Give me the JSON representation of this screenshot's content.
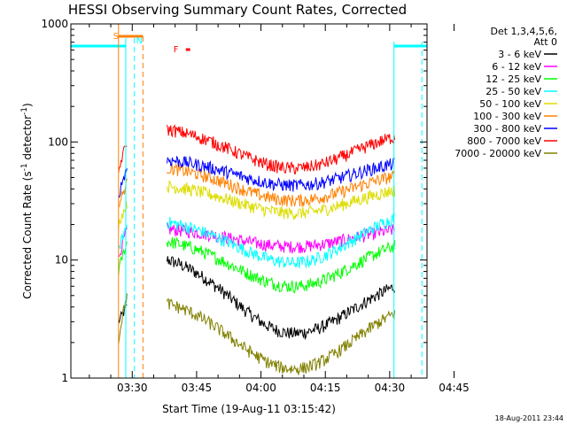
{
  "chart_data": {
    "type": "line",
    "title": "HESSI Observing Summary Count Rates, Corrected",
    "xlabel": "Start Time (19-Aug-11 03:15:42)",
    "ylabel_main": "Corrected Count Rate (s",
    "ylabel_sup": "-1",
    "ylabel_end": " detector",
    "ylabel_close": ")",
    "x_range_min": [
      15.7,
      98.7
    ],
    "xtick_labels": [
      "03:30",
      "03:45",
      "04:00",
      "04:15",
      "04:30",
      "04:45"
    ],
    "xtick_values_min": [
      30,
      45,
      60,
      75,
      90,
      105
    ],
    "yscale": "log",
    "ylim": [
      1,
      1000
    ],
    "ytick_labels": [
      "1",
      "10",
      "100",
      "1000"
    ],
    "ytick_values": [
      1,
      10,
      100,
      1000
    ],
    "legend_header": [
      "Det 1,3,4,5,6,",
      "Att 0"
    ],
    "series": [
      {
        "name": "3 - 6 keV",
        "color": "#000000",
        "seg1": [
          3,
          4
        ],
        "seg2": {
          "start": 12,
          "valley": 2.4,
          "end": 8
        }
      },
      {
        "name": "6 - 12 keV",
        "color": "#ff00ff",
        "seg1": [
          10,
          18
        ],
        "seg2": {
          "start": 19,
          "valley": 13,
          "end": 20
        }
      },
      {
        "name": "12 - 25 keV",
        "color": "#00ff00",
        "seg1": [
          8,
          14
        ],
        "seg2": {
          "start": 16,
          "valley": 6,
          "end": 17
        }
      },
      {
        "name": "25 - 50 keV",
        "color": "#00ffff",
        "seg1": [
          12,
          20
        ],
        "seg2": {
          "start": 23,
          "valley": 9.5,
          "end": 30
        }
      },
      {
        "name": "50 - 100 keV",
        "color": "#dddd00",
        "seg1": [
          20,
          30
        ],
        "seg2": {
          "start": 45,
          "valley": 25,
          "end": 45
        }
      },
      {
        "name": "100 - 300 keV",
        "color": "#ff8000",
        "seg1": [
          28,
          45
        ],
        "seg2": {
          "start": 65,
          "valley": 32,
          "end": 60
        }
      },
      {
        "name": "300 - 800 keV",
        "color": "#0000ff",
        "seg1": [
          35,
          60
        ],
        "seg2": {
          "start": 75,
          "valley": 43,
          "end": 75
        }
      },
      {
        "name": "800 - 7000 keV",
        "color": "#ff0000",
        "seg1": [
          55,
          100
        ],
        "seg2": {
          "start": 140,
          "valley": 60,
          "end": 135
        }
      },
      {
        "name": "7000 - 20000 keV",
        "color": "#808000",
        "seg1": [
          2,
          5
        ],
        "seg2": {
          "start": 5,
          "valley": 1.2,
          "end": 5
        }
      }
    ],
    "flag_labels": {
      "saa": "S",
      "night": "N",
      "flare": "F"
    },
    "saa_band_min": [
      26.8,
      30.5
    ],
    "night_band_min": [
      30.5,
      32.5
    ],
    "flare_marker_min": [
      42.5,
      43.5
    ],
    "attenuator_level": 650,
    "attenuator_segments_min": [
      [
        15.7,
        28.5
      ],
      [
        91,
        98.7
      ]
    ],
    "night_dashed_lines_min": [
      28.5,
      97.5
    ],
    "saa_dashed_line_min": [
      32.5
    ],
    "data_segments_min": [
      [
        26.8,
        28.8
      ],
      [
        38.1,
        91.2
      ]
    ],
    "timestamp": "18-Aug-2011 23:44"
  }
}
